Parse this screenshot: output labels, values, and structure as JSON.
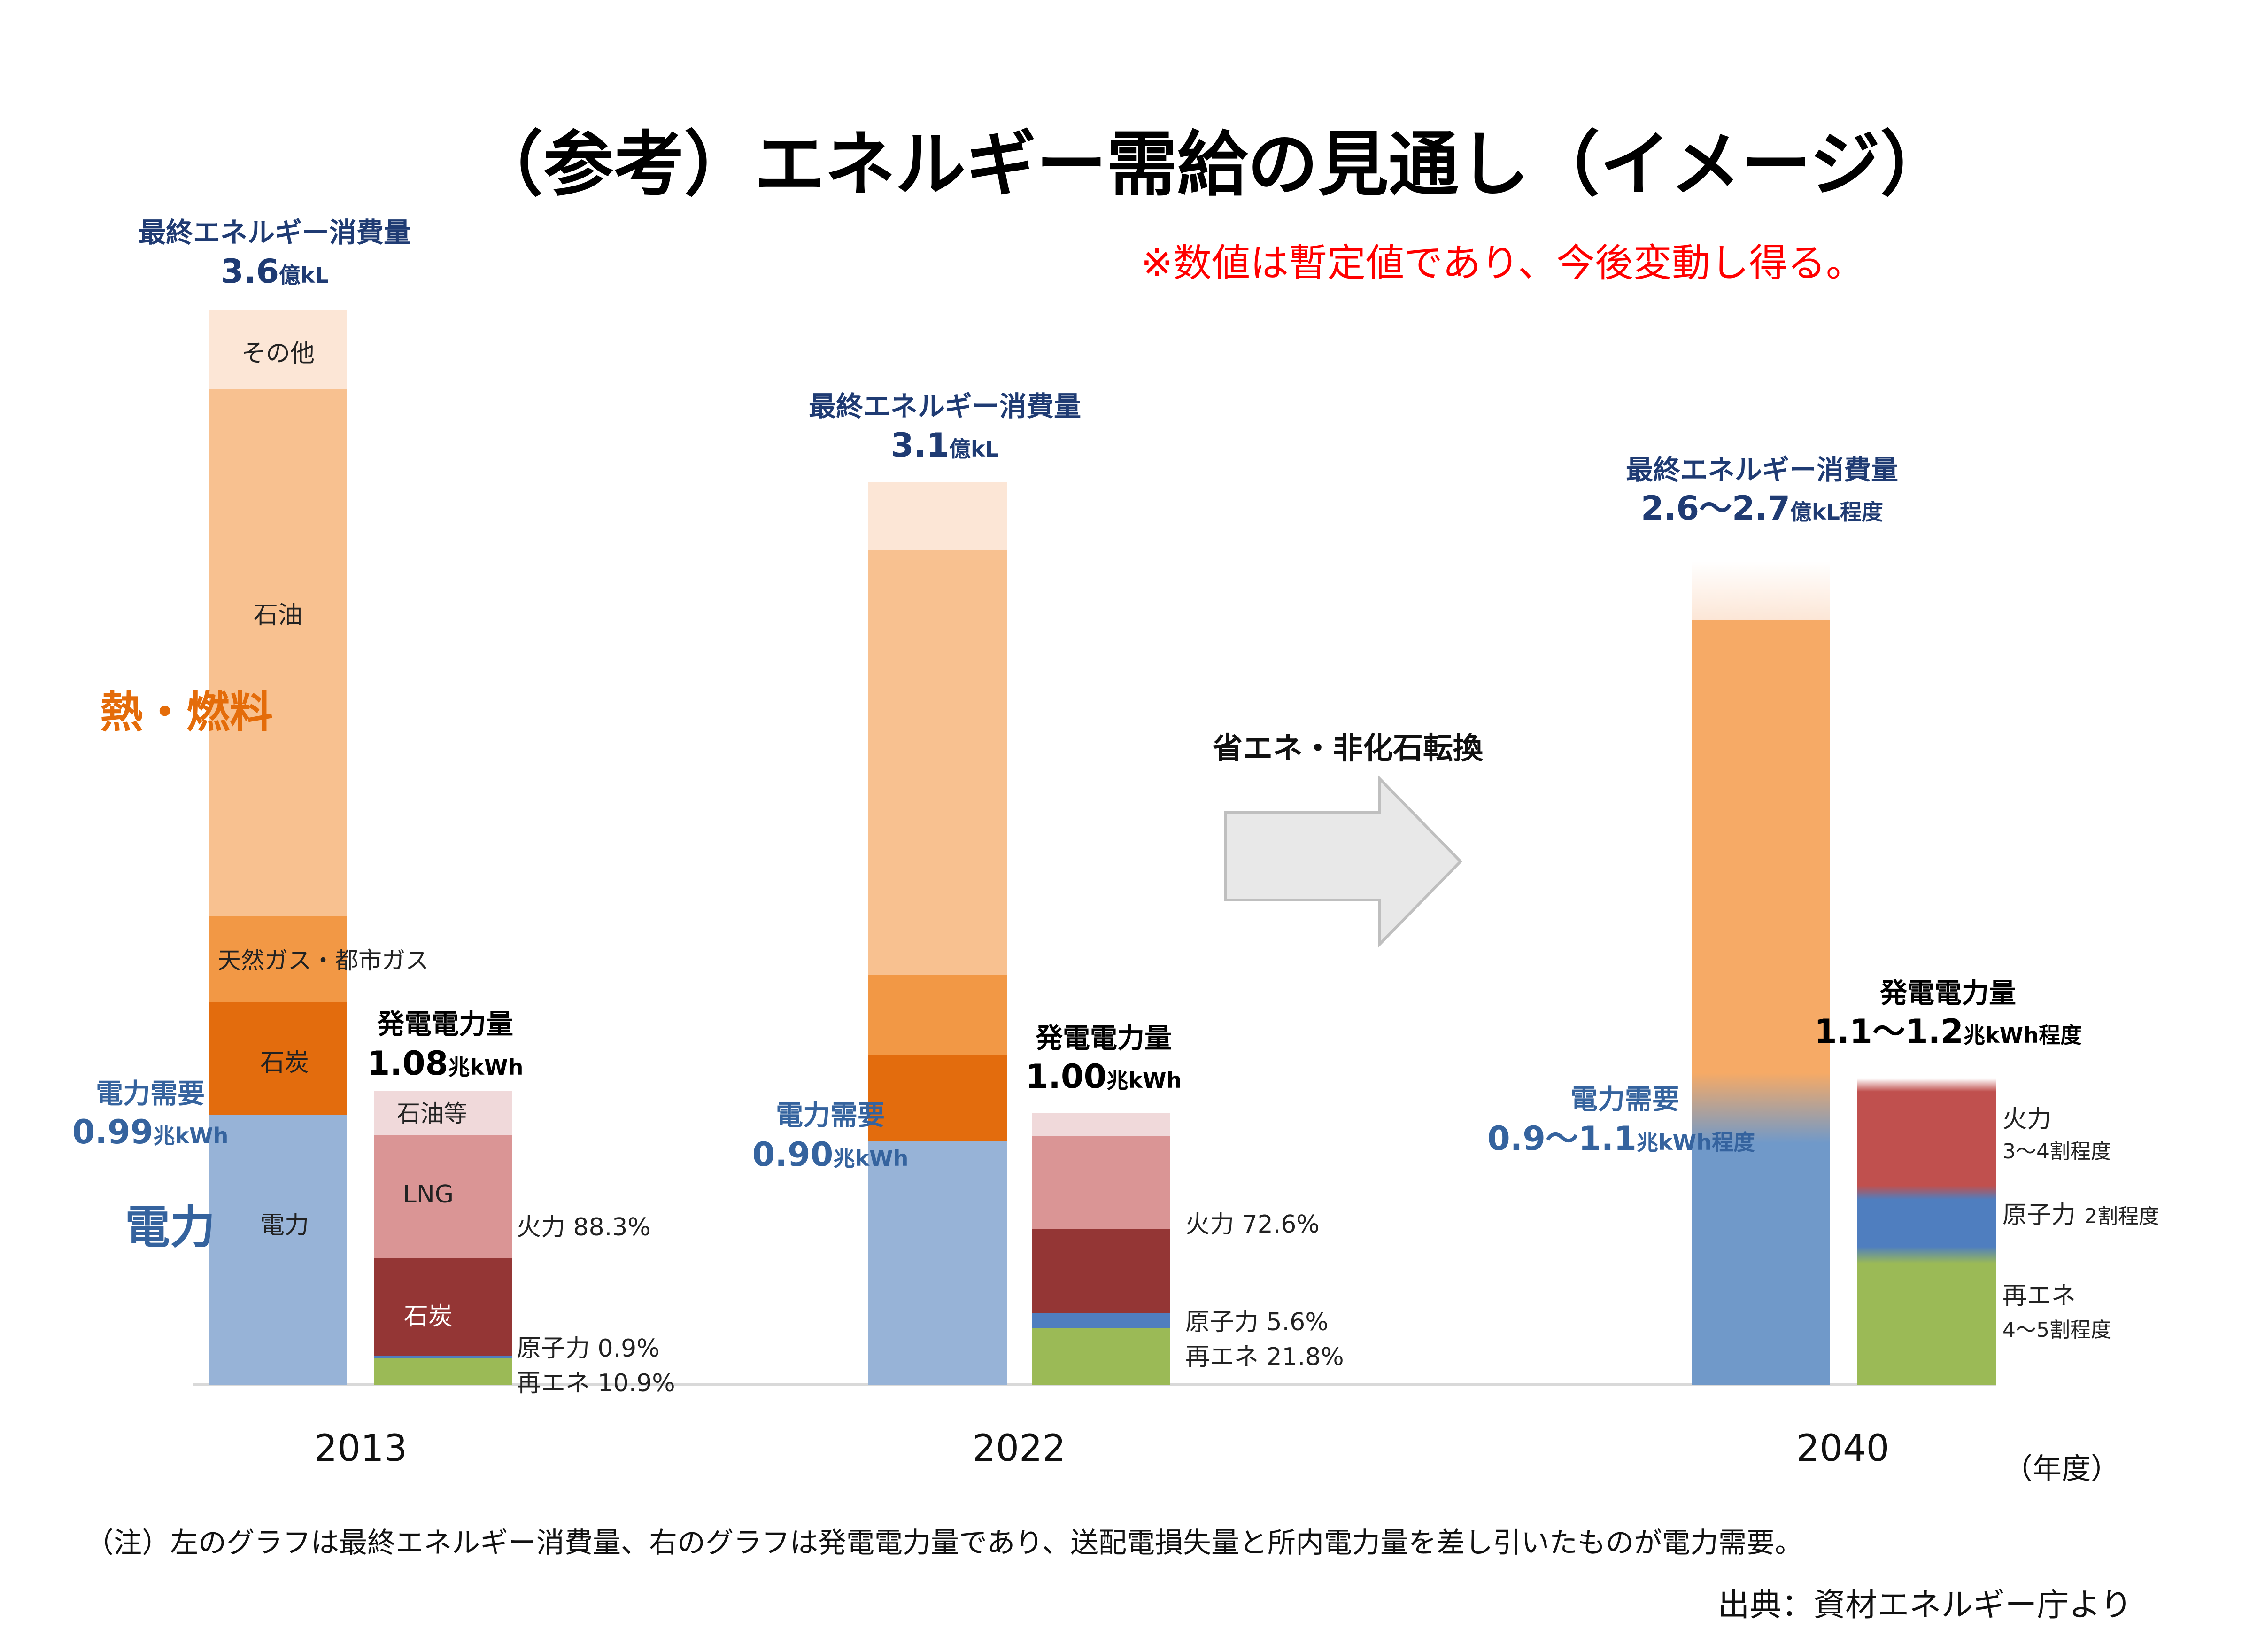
{
  "title": "（参考）エネルギー需給の見通し（イメージ）",
  "disclaimer": "※数値は暫定値であり、今後変動し得る。",
  "side_labels": {
    "heat_fuel": "熱・燃料",
    "electricity": "電力"
  },
  "arrow_label": "省エネ・非化石転換",
  "year_unit": "（年度）",
  "note": "（注）左のグラフは最終エネルギー消費量、右のグラフは発電電力量であり、送配電損失量と所内電力量を差し引いたものが電力需要。",
  "source": "出典：資材エネルギー庁より",
  "colors": {
    "other": "#FCE6D6",
    "oil": "#F8C190",
    "gas": "#F29845",
    "coal": "#E36C0D",
    "electricity": "#97B3D7",
    "electricity_2040": "#7099C9",
    "oil_2040": "#F6AA66",
    "gen_oil": "#F0D9DA",
    "gen_lng": "#DA9595",
    "gen_coal": "#943635",
    "gen_nuclear": "#4F7EBF",
    "gen_renewable": "#9BBA56",
    "gen_thermal_2040": "#C0504E",
    "title": "#000000",
    "disclaimer": "#FF0000",
    "navy": "#1F3B73",
    "blue_label": "#35639E",
    "orange_label": "#E46C0A",
    "arrow_fill": "#E8E8E8",
    "arrow_stroke": "#BFBFBF",
    "axis": "#D9D9D9"
  },
  "chart_data": {
    "type": "bar",
    "stacked": true,
    "categories": [
      "2013",
      "2022",
      "2040"
    ],
    "final_energy_consumption": {
      "label": "最終エネルギー消費量",
      "unit": "億kL",
      "totals": [
        3.6,
        3.1,
        2.65
      ],
      "total_labels": [
        "3.6",
        "3.1",
        "2.6～2.7"
      ],
      "total_units": [
        "億kL",
        "億kL",
        "億kL程度"
      ],
      "segments": [
        {
          "key": "electricity",
          "name": "電力",
          "values": [
            0.91,
            0.83,
            0.83
          ]
        },
        {
          "key": "coal",
          "name": "石炭",
          "values": [
            0.39,
            0.29,
            0
          ]
        },
        {
          "key": "gas",
          "name": "天然ガス・都市ガス",
          "values": [
            0.29,
            0.27,
            0
          ]
        },
        {
          "key": "oil",
          "name": "石油",
          "values": [
            1.75,
            1.42,
            1.51
          ]
        },
        {
          "key": "other",
          "name": "その他",
          "values": [
            0.26,
            0.22,
            0.17
          ]
        }
      ]
    },
    "electricity_demand": {
      "label": "電力需要",
      "unit": "兆kWh",
      "values": [
        0.99,
        0.9,
        1.0
      ],
      "value_labels": [
        "0.99",
        "0.90",
        "0.9～1.1"
      ],
      "value_units": [
        "兆kWh",
        "兆kWh",
        "兆kWh程度"
      ]
    },
    "power_generation": {
      "label": "発電電力量",
      "unit": "兆kWh",
      "totals": [
        1.08,
        1.0,
        1.15
      ],
      "total_labels": [
        "1.08",
        "1.00",
        "1.1～1.2"
      ],
      "total_units": [
        "兆kWh",
        "兆kWh",
        "兆kWh程度"
      ],
      "segments": [
        {
          "key": "gen_renewable",
          "name": "再エネ",
          "values": [
            0.118,
            0.218,
            0.45
          ]
        },
        {
          "key": "gen_nuclear",
          "name": "原子力",
          "values": [
            0.01,
            0.056,
            0.2
          ]
        },
        {
          "key": "gen_coal",
          "name": "石炭",
          "values": [
            0.35,
            0.296,
            0
          ]
        },
        {
          "key": "gen_lng",
          "name": "LNG",
          "values": [
            0.44,
            0.355,
            0
          ]
        },
        {
          "key": "gen_oil",
          "name": "石油等",
          "values": [
            0.162,
            0.075,
            0
          ]
        },
        {
          "key": "gen_thermal_2040",
          "name": "火力",
          "values": [
            0,
            0,
            0.35
          ]
        }
      ],
      "mix_labels_2013": {
        "thermal": "火力 88.3%",
        "nuclear": "原子力 0.9%",
        "renewable": "再エネ 10.9%"
      },
      "mix_labels_2022": {
        "thermal": "火力 72.6%",
        "nuclear": "原子力 5.6%",
        "renewable": "再エネ 21.8%"
      },
      "mix_labels_2040": {
        "thermal_name": "火力",
        "thermal_share": "3～4割程度",
        "nuclear_name": "原子力",
        "nuclear_share": "2割程度",
        "renewable_name": "再エネ",
        "renewable_share": "4～5割程度"
      }
    },
    "segment_labels_2013": {
      "other": "その他",
      "oil": "石油",
      "gas": "天然ガス・都市ガス",
      "coal": "石炭",
      "electricity": "電力",
      "gen_oil": "石油等",
      "gen_lng": "LNG",
      "gen_coal": "石炭"
    },
    "y_range": [
      0,
      3.6
    ]
  }
}
